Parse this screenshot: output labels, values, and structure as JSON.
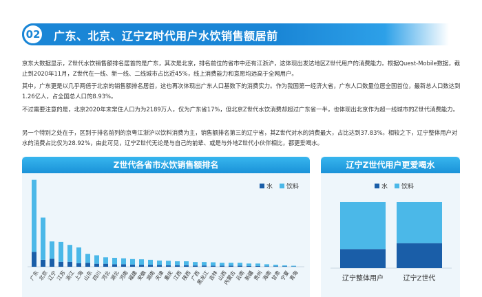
{
  "header": {
    "number": "02",
    "title": "广东、北京、辽宁Z时代用户水饮销售额居前"
  },
  "paragraphs": [
    "京东大数据显示，Z世代水饮销售额排名居首的是广东，其次是北京，排名前位的省市中还有江浙沪，这体现出发达地区Z世代用户的消费能力。根据Quest-Mobile数据，截止到2020年11月，Z世代在一线、新一线、二线城市占比近45%，线上消费能力和意愿均远高于全网用户。",
    "其中，广东更是以几乎两倍于北京的销售额排名居首，这也再次体现出广东人口基数下的消费实力。作为我国第一经济大省，广东人口数量位居全国首位，最新总人口数达到1.26亿人，占全国总人口的8.93%。",
    "不过需要注意的是，北京2020年末常住人口为为2189万人，仅为广东省17%，但北京Z世代水饮消费却超过广东省一半，也体现出北京作为超一线城市的Z世代消费能力。",
    "另一个特别之处在于，区别于排名前列的京粤江浙沪以饮料消费为主，销售额排名第三的辽宁省，其Z世代对水的消费最大，占比达到37.83%。相较之下，辽宁整体用户对水的消费占比仅为28.92%，由此可见，辽宁Z世代无论是与自己的前辈、或是与外地Z世代小伙伴相比，都更爱喝水。"
  ],
  "colors": {
    "water": "#1a5ea8",
    "drink": "#4bb8e8"
  },
  "left_chart": {
    "title": "Z世代各省市水饮销售额排名",
    "legend": [
      "水",
      "饮料"
    ]
  },
  "right_chart": {
    "title": "辽宁Z世代用户更爱喝水",
    "legend": [
      "水",
      "饮料"
    ]
  },
  "chart_data": [
    {
      "type": "bar",
      "stacked": true,
      "title": "Z世代各省市水饮销售额排名",
      "categories": [
        "广东",
        "北京",
        "辽宁",
        "江苏",
        "浙江",
        "上海",
        "山东",
        "四川",
        "河北",
        "湖北",
        "河南",
        "福建",
        "安徽",
        "湖南",
        "天津",
        "重庆",
        "江西",
        "陕西",
        "广西",
        "黑龙江",
        "吉林",
        "山西",
        "内蒙古",
        "云南",
        "新疆",
        "贵州",
        "海南",
        "甘肃",
        "宁夏",
        "青海"
      ],
      "series": [
        {
          "name": "水",
          "values": [
            30,
            14,
            16,
            10,
            10,
            7,
            8,
            6,
            6,
            5,
            5,
            4.5,
            4,
            4,
            3.5,
            3,
            3,
            3,
            2.5,
            2.5,
            2,
            2,
            2,
            2,
            1.5,
            1.5,
            1,
            1,
            0.7,
            0.5
          ]
        },
        {
          "name": "饮料",
          "values": [
            145,
            85,
            35,
            40,
            34,
            32,
            18,
            17,
            13,
            13,
            12,
            11,
            11,
            10,
            9,
            9,
            8,
            8,
            7,
            7,
            7,
            6,
            6,
            6,
            5,
            5,
            4,
            3,
            2,
            1.5
          ]
        }
      ],
      "ylim": [
        0,
        180
      ],
      "legend_position": "top-right"
    },
    {
      "type": "bar",
      "stacked": true,
      "title": "辽宁Z世代用户更爱喝水",
      "categories": [
        "辽宁整体用户",
        "辽宁Z世代"
      ],
      "series": [
        {
          "name": "水",
          "values": [
            28.92,
            37.83
          ]
        },
        {
          "name": "饮料",
          "values": [
            71.08,
            62.17
          ]
        }
      ],
      "ylim": [
        0,
        100
      ],
      "legend_position": "top-right"
    }
  ]
}
